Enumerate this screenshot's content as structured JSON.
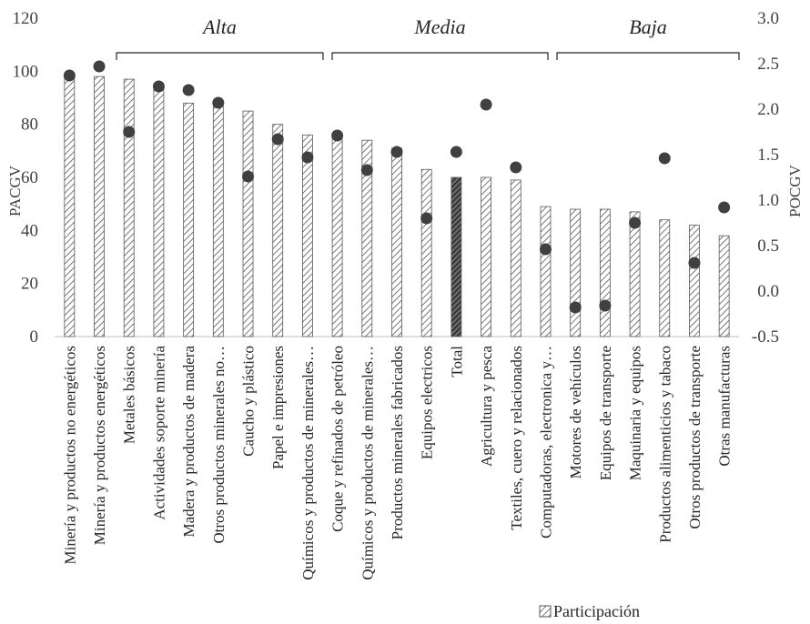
{
  "chart_data": {
    "type": "bar",
    "categories": [
      "Minería y productos no energéticos",
      "Minería y productos energéticos",
      "Metales básicos",
      "Actividades soporte minería",
      "Madera y productos de madera",
      "Otros productos minerales no…",
      "Caucho y plástico",
      "Papel e impresiones",
      "Químicos y productos de minerales…",
      "Coque y refinados de petróleo",
      "Químicos y productos de minerales…",
      "Productos minerales fabricados",
      "Equipos electricos",
      "Total",
      "Agricultura y pesca",
      "Textiles, cuero y relacionados",
      "Computadoras, electronica y…",
      "Motores de vehículos",
      "Equipos de transporte",
      "Maquinaria y equipos",
      "Productos alimenticios y tabaco",
      "Otros productos de transporte",
      "Otras manufacturas"
    ],
    "series": [
      {
        "name": "Participación",
        "axis": "left",
        "values": [
          98,
          98,
          97,
          95,
          88,
          88,
          85,
          80,
          76,
          76,
          74,
          71,
          63,
          60,
          60,
          59,
          49,
          48,
          48,
          47,
          44,
          42,
          38
        ]
      },
      {
        "axis": "right",
        "kind": "scatter",
        "values": [
          2.37,
          2.47,
          1.75,
          2.25,
          2.21,
          2.07,
          1.26,
          1.67,
          1.47,
          1.71,
          1.33,
          1.53,
          0.8,
          1.53,
          2.05,
          1.36,
          0.46,
          -0.18,
          -0.16,
          0.75,
          1.46,
          0.31,
          0.92
        ]
      }
    ],
    "highlight_category": "Total",
    "ylabel_left": "PACGV",
    "ylabel_right": "POCGV",
    "ylim_left": [
      0,
      120
    ],
    "ylim_right": [
      -0.5,
      3.0
    ],
    "yticks_left": [
      "0",
      "20",
      "40",
      "60",
      "80",
      "100",
      "120"
    ],
    "yticks_right": [
      "-0.5",
      "0.0",
      "0.5",
      "1.0",
      "1.5",
      "2.0",
      "2.5",
      "3.0"
    ],
    "groups": [
      {
        "label": "Alta",
        "from": 2,
        "to": 9
      },
      {
        "label": "Media",
        "from": 9,
        "to": 16
      },
      {
        "label": "Baja",
        "from": 17,
        "to": 22
      }
    ],
    "legend": {
      "label": "Participación",
      "placement": "bottom-right"
    },
    "grid": false,
    "colors": {
      "bar_fill": "#ffffff",
      "bar_hatch": "#555555",
      "highlight_hatch": "#222222",
      "marker": "#404040",
      "text": "#262626"
    }
  }
}
